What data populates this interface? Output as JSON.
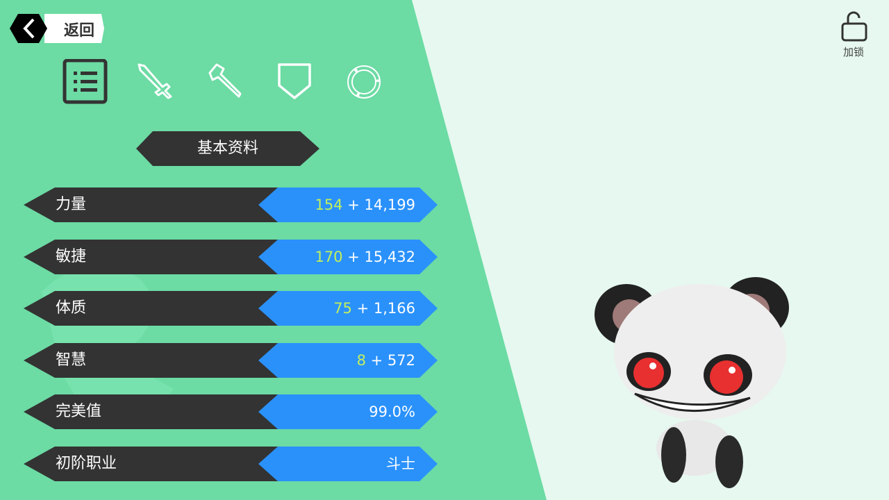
{
  "header": {
    "back_label": "返回",
    "lock_label": "加锁"
  },
  "tabs": [
    {
      "icon": "list-icon",
      "active": true
    },
    {
      "icon": "sword-icon"
    },
    {
      "icon": "staff-icon"
    },
    {
      "icon": "shield-icon"
    },
    {
      "icon": "ring-icon"
    }
  ],
  "section_title": "基本资料",
  "stats": [
    {
      "name": "力量",
      "base": "154",
      "bonus": "+ 14,199"
    },
    {
      "name": "敏捷",
      "base": "170",
      "bonus": "+ 15,432"
    },
    {
      "name": "体质",
      "base": "75",
      "bonus": "+ 1,166"
    },
    {
      "name": "智慧",
      "base": "8",
      "bonus": "+ 572"
    },
    {
      "name": "完美值",
      "base": "",
      "bonus": "99.0%"
    },
    {
      "name": "初阶职业",
      "base": "",
      "bonus": "斗士"
    }
  ],
  "colors": {
    "panel": "#6cdba4",
    "bar_dark": "#333333",
    "bar_blue": "#2a91fb",
    "base_value": "#c2ef5c",
    "background": "#e6f8ef"
  }
}
